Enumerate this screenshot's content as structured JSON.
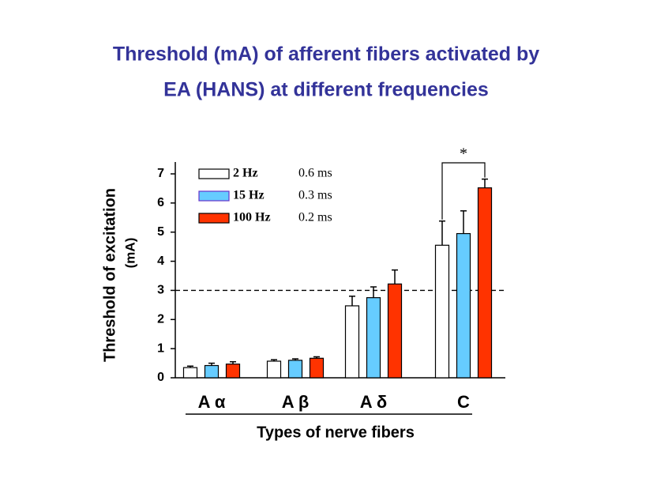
{
  "chart_data": {
    "type": "bar",
    "title": [
      "Threshold (mA) of afferent fibers activated by",
      "EA (HANS) at different frequencies"
    ],
    "y_label": "Threshold of excitation",
    "y_label_unit": "(mA)",
    "x_label": "Types of nerve fibers",
    "categories": [
      "A α",
      "A β",
      "A δ",
      "C"
    ],
    "series": [
      {
        "name": "2 Hz",
        "pulse_width": "0.6 ms",
        "color": "#ffffff",
        "values": [
          0.35,
          0.57,
          2.47,
          4.55
        ],
        "errors": [
          0.05,
          0.05,
          0.33,
          0.83
        ]
      },
      {
        "name": "15 Hz",
        "pulse_width": "0.3 ms",
        "color": "#66ccff",
        "values": [
          0.42,
          0.6,
          2.75,
          4.95
        ],
        "errors": [
          0.08,
          0.05,
          0.37,
          0.78
        ]
      },
      {
        "name": "100 Hz",
        "pulse_width": "0.2 ms",
        "color": "#ff3300",
        "values": [
          0.47,
          0.67,
          3.22,
          6.52
        ],
        "errors": [
          0.08,
          0.05,
          0.48,
          0.3
        ]
      }
    ],
    "ylim": [
      0,
      7
    ],
    "yticks": [
      0,
      1,
      2,
      3,
      4,
      5,
      6,
      7
    ],
    "reference_line": 3,
    "significance": {
      "label": "*",
      "category": 3,
      "series": [
        0,
        2
      ]
    }
  }
}
